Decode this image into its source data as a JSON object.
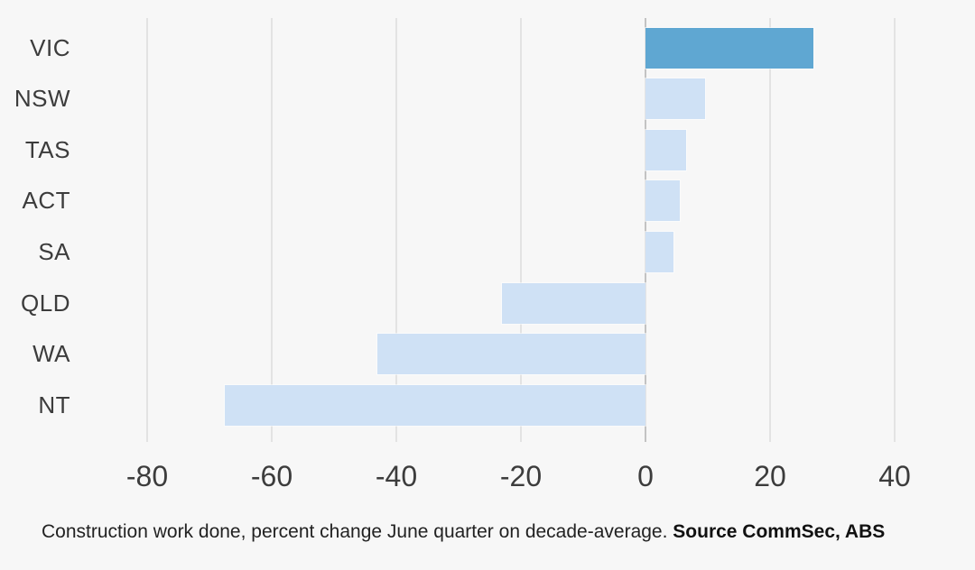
{
  "page": {
    "background_color": "#f7f7f7"
  },
  "chart_data": {
    "type": "bar",
    "orientation": "horizontal",
    "title": "",
    "xlabel": "",
    "ylabel": "",
    "categories": [
      "VIC",
      "NSW",
      "TAS",
      "ACT",
      "SA",
      "QLD",
      "WA",
      "NT"
    ],
    "values": [
      27,
      9.5,
      6.5,
      5.5,
      4.5,
      -23,
      -43,
      -67.5
    ],
    "unit": "percent",
    "xlim": [
      -80,
      40
    ],
    "x_ticks": [
      -80,
      -60,
      -40,
      -20,
      0,
      20,
      40
    ],
    "grid": "vertical-gridlines-on",
    "legend": "none",
    "highlight_category": "VIC",
    "colors": {
      "bar_default": "#cfe1f5",
      "bar_highlight": "#5fa7d2",
      "gridline": "#e3e3e3",
      "zero_line": "#c3c3c3",
      "label_text": "#3c3c3c"
    },
    "caption_text": "Construction work done, percent change June quarter on decade-average. ",
    "caption_source": "Source CommSec, ABS"
  }
}
